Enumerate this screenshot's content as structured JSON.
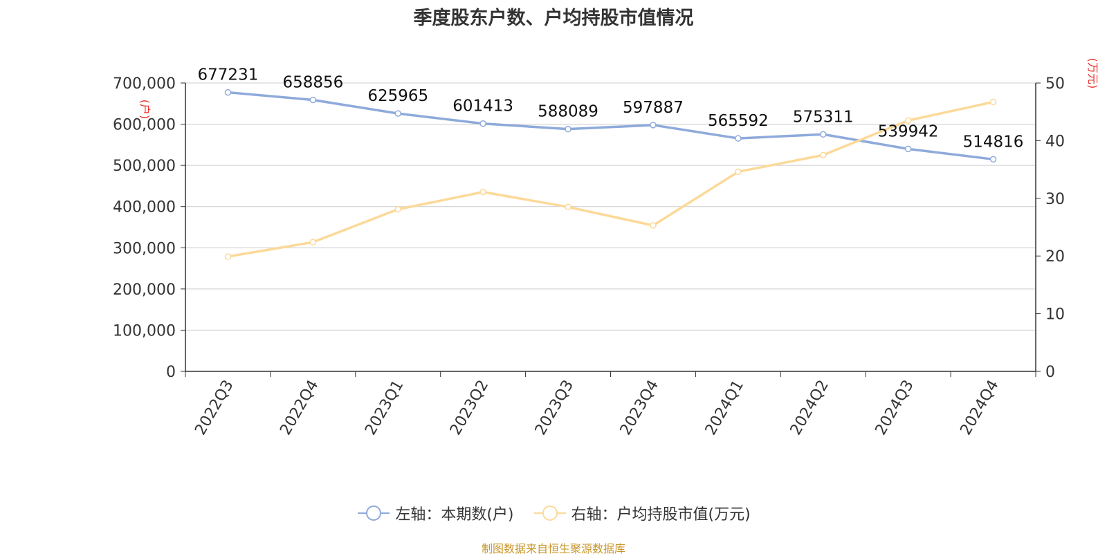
{
  "title": "季度股东户数、户均持股市值情况",
  "source": "制图数据来自恒生聚源数据库",
  "colors": {
    "left_series": "#8eaadb",
    "right_series": "#fcd999",
    "source_text": "#c8962a",
    "right_unit": "#e8302a"
  },
  "legend": {
    "left": "左轴：本期数(户)",
    "right": "右轴：户均持股市值(万元)"
  },
  "chart_data": {
    "type": "line",
    "title": "季度股东户数、户均持股市值情况",
    "categories": [
      "2022Q3",
      "2022Q4",
      "2023Q1",
      "2023Q2",
      "2023Q3",
      "2023Q4",
      "2024Q1",
      "2024Q2",
      "2024Q3",
      "2024Q4"
    ],
    "left_axis": {
      "unit_label": "(户)",
      "range": [
        0,
        700000
      ],
      "ticks": [
        "0",
        "100,000",
        "200,000",
        "300,000",
        "400,000",
        "500,000",
        "600,000",
        "700,000"
      ]
    },
    "right_axis": {
      "unit_label": "(万元)",
      "range": [
        0,
        50
      ],
      "ticks": [
        "0",
        "10",
        "20",
        "30",
        "40",
        "50"
      ]
    },
    "grid": true,
    "legend_position": "bottom-center",
    "series": [
      {
        "name": "左轴：本期数(户)",
        "axis": "left",
        "values": [
          677231,
          658856,
          625965,
          601413,
          588089,
          597887,
          565592,
          575311,
          539942,
          514816
        ],
        "labels": [
          "677231",
          "658856",
          "625965",
          "601413",
          "588089",
          "597887",
          "565592",
          "575311",
          "539942",
          "514816"
        ]
      },
      {
        "name": "右轴：户均持股市值(万元)",
        "axis": "right",
        "values": [
          19.9,
          22.4,
          28.1,
          31.1,
          28.5,
          25.3,
          34.6,
          37.5,
          43.5,
          46.7
        ]
      }
    ]
  }
}
